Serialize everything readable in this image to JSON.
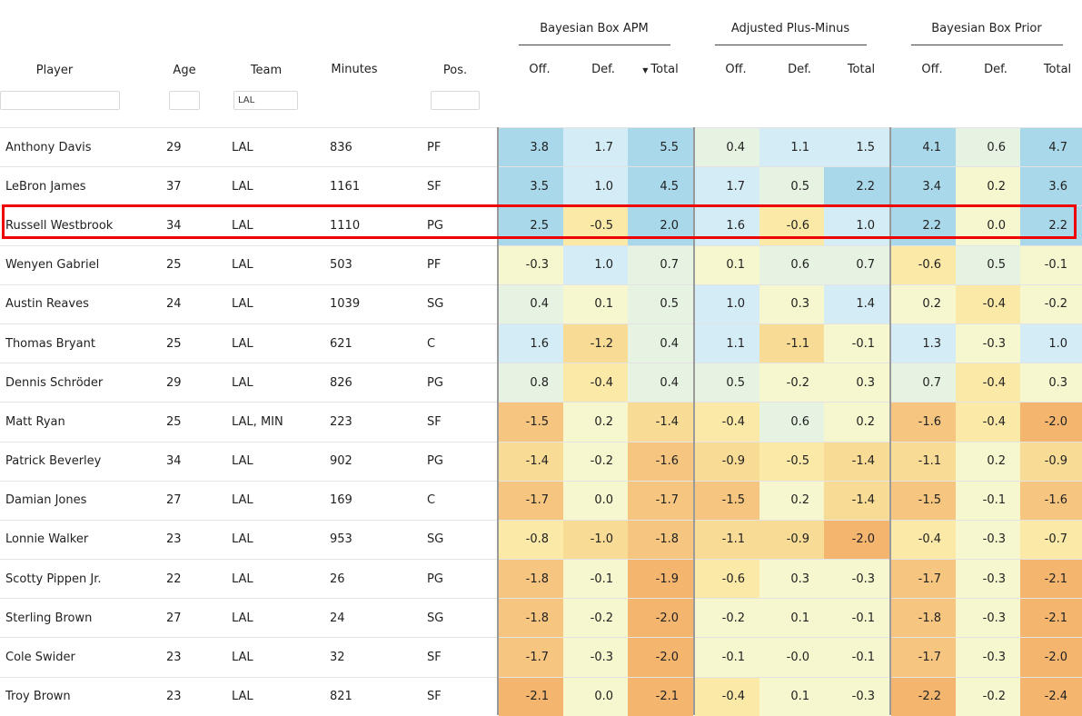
{
  "header": {
    "groups": [
      "Bayesian Box APM",
      "Adjusted Plus-Minus",
      "Bayesian Box Prior"
    ],
    "player": "Player",
    "age": "Age",
    "team": "Team",
    "minutes": "Minutes",
    "pos": "Pos.",
    "off": "Off.",
    "def": "Def.",
    "total": "Total",
    "sort_indicator": "▼"
  },
  "filters": {
    "player": "",
    "age": "",
    "team": "LAL",
    "pos": ""
  },
  "highlighted_player": "Russell Westbrook",
  "rows": [
    {
      "player": "Anthony Davis",
      "age": "29",
      "team": "LAL",
      "minutes": "836",
      "pos": "PF",
      "bbapm": [
        "3.8",
        "1.7",
        "5.5"
      ],
      "apm": [
        "0.4",
        "1.1",
        "1.5"
      ],
      "prior": [
        "4.1",
        "0.6",
        "4.7"
      ]
    },
    {
      "player": "LeBron James",
      "age": "37",
      "team": "LAL",
      "minutes": "1161",
      "pos": "SF",
      "bbapm": [
        "3.5",
        "1.0",
        "4.5"
      ],
      "apm": [
        "1.7",
        "0.5",
        "2.2"
      ],
      "prior": [
        "3.4",
        "0.2",
        "3.6"
      ]
    },
    {
      "player": "Russell Westbrook",
      "age": "34",
      "team": "LAL",
      "minutes": "1110",
      "pos": "PG",
      "bbapm": [
        "2.5",
        "-0.5",
        "2.0"
      ],
      "apm": [
        "1.6",
        "-0.6",
        "1.0"
      ],
      "prior": [
        "2.2",
        "0.0",
        "2.2"
      ]
    },
    {
      "player": "Wenyen Gabriel",
      "age": "25",
      "team": "LAL",
      "minutes": "503",
      "pos": "PF",
      "bbapm": [
        "-0.3",
        "1.0",
        "0.7"
      ],
      "apm": [
        "0.1",
        "0.6",
        "0.7"
      ],
      "prior": [
        "-0.6",
        "0.5",
        "-0.1"
      ]
    },
    {
      "player": "Austin Reaves",
      "age": "24",
      "team": "LAL",
      "minutes": "1039",
      "pos": "SG",
      "bbapm": [
        "0.4",
        "0.1",
        "0.5"
      ],
      "apm": [
        "1.0",
        "0.3",
        "1.4"
      ],
      "prior": [
        "0.2",
        "-0.4",
        "-0.2"
      ]
    },
    {
      "player": "Thomas Bryant",
      "age": "25",
      "team": "LAL",
      "minutes": "621",
      "pos": "C",
      "bbapm": [
        "1.6",
        "-1.2",
        "0.4"
      ],
      "apm": [
        "1.1",
        "-1.1",
        "-0.1"
      ],
      "prior": [
        "1.3",
        "-0.3",
        "1.0"
      ]
    },
    {
      "player": "Dennis Schröder",
      "age": "29",
      "team": "LAL",
      "minutes": "826",
      "pos": "PG",
      "bbapm": [
        "0.8",
        "-0.4",
        "0.4"
      ],
      "apm": [
        "0.5",
        "-0.2",
        "0.3"
      ],
      "prior": [
        "0.7",
        "-0.4",
        "0.3"
      ]
    },
    {
      "player": "Matt Ryan",
      "age": "25",
      "team": "LAL, MIN",
      "minutes": "223",
      "pos": "SF",
      "bbapm": [
        "-1.5",
        "0.2",
        "-1.4"
      ],
      "apm": [
        "-0.4",
        "0.6",
        "0.2"
      ],
      "prior": [
        "-1.6",
        "-0.4",
        "-2.0"
      ]
    },
    {
      "player": "Patrick Beverley",
      "age": "34",
      "team": "LAL",
      "minutes": "902",
      "pos": "PG",
      "bbapm": [
        "-1.4",
        "-0.2",
        "-1.6"
      ],
      "apm": [
        "-0.9",
        "-0.5",
        "-1.4"
      ],
      "prior": [
        "-1.1",
        "0.2",
        "-0.9"
      ]
    },
    {
      "player": "Damian Jones",
      "age": "27",
      "team": "LAL",
      "minutes": "169",
      "pos": "C",
      "bbapm": [
        "-1.7",
        "0.0",
        "-1.7"
      ],
      "apm": [
        "-1.5",
        "0.2",
        "-1.4"
      ],
      "prior": [
        "-1.5",
        "-0.1",
        "-1.6"
      ]
    },
    {
      "player": "Lonnie Walker",
      "age": "23",
      "team": "LAL",
      "minutes": "953",
      "pos": "SG",
      "bbapm": [
        "-0.8",
        "-1.0",
        "-1.8"
      ],
      "apm": [
        "-1.1",
        "-0.9",
        "-2.0"
      ],
      "prior": [
        "-0.4",
        "-0.3",
        "-0.7"
      ]
    },
    {
      "player": "Scotty Pippen Jr.",
      "age": "22",
      "team": "LAL",
      "minutes": "26",
      "pos": "PG",
      "bbapm": [
        "-1.8",
        "-0.1",
        "-1.9"
      ],
      "apm": [
        "-0.6",
        "0.3",
        "-0.3"
      ],
      "prior": [
        "-1.7",
        "-0.3",
        "-2.1"
      ]
    },
    {
      "player": "Sterling Brown",
      "age": "27",
      "team": "LAL",
      "minutes": "24",
      "pos": "SG",
      "bbapm": [
        "-1.8",
        "-0.2",
        "-2.0"
      ],
      "apm": [
        "-0.2",
        "0.1",
        "-0.1"
      ],
      "prior": [
        "-1.8",
        "-0.3",
        "-2.1"
      ]
    },
    {
      "player": "Cole Swider",
      "age": "23",
      "team": "LAL",
      "minutes": "32",
      "pos": "SF",
      "bbapm": [
        "-1.7",
        "-0.3",
        "-2.0"
      ],
      "apm": [
        "-0.1",
        "-0.0",
        "-0.1"
      ],
      "prior": [
        "-1.7",
        "-0.3",
        "-2.0"
      ]
    },
    {
      "player": "Troy Brown",
      "age": "23",
      "team": "LAL",
      "minutes": "821",
      "pos": "SF",
      "bbapm": [
        "-2.1",
        "0.0",
        "-2.1"
      ],
      "apm": [
        "-0.4",
        "0.1",
        "-0.3"
      ],
      "prior": [
        "-2.2",
        "-0.2",
        "-2.4"
      ]
    }
  ],
  "colors": {
    "highlight_border": "#ee0000",
    "scale_strong_positive": "#a9d8ea",
    "scale_positive": "#d4ecf5",
    "scale_neutral": "#f7f7cf",
    "scale_negative": "#f8dc96",
    "scale_strong_negative": "#f4b56e"
  }
}
